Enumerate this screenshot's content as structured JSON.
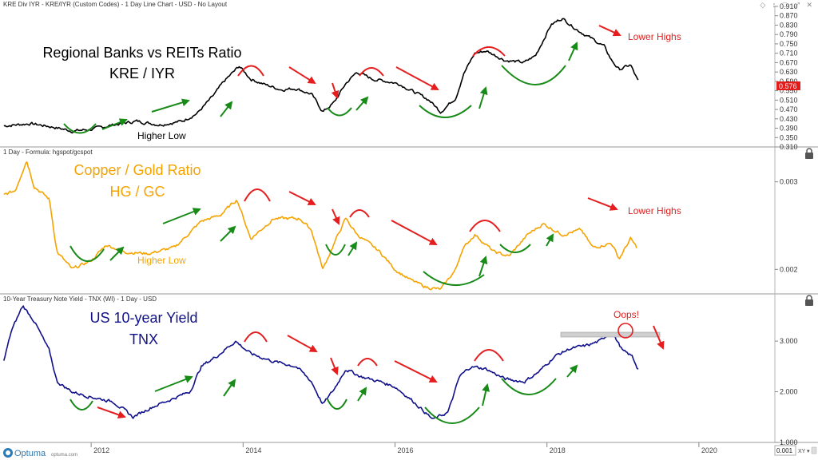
{
  "window": {
    "title": "KRE Div IYR - KRE/IYR (Custom Codes) - 1 Day Line Chart - USD - No Layout",
    "controls": [
      "◇",
      "↕",
      "□",
      "⤢",
      "✕"
    ]
  },
  "brand": {
    "logo_text": "Optuma",
    "site": "optuma.com",
    "zoom_readout": "0.001",
    "xy_label": "XY"
  },
  "x_axis": {
    "labels": [
      "2012",
      "2014",
      "2016",
      "2018",
      "2020"
    ],
    "positions": [
      2012,
      2014,
      2016,
      2018,
      2020
    ]
  },
  "chart_data": [
    {
      "type": "line",
      "panel": "top",
      "header": "",
      "title": [
        "Regional Banks vs REITs Ratio",
        "KRE / IYR"
      ],
      "series": [
        {
          "name": "KRE/IYR",
          "color": "#000000"
        }
      ],
      "ylim": [
        0.31,
        0.91
      ],
      "y_ticks": [
        0.91,
        0.87,
        0.83,
        0.79,
        0.75,
        0.71,
        0.67,
        0.63,
        0.59,
        0.55,
        0.51,
        0.47,
        0.43,
        0.39,
        0.35,
        0.31
      ],
      "y_tick_labels": [
        "0.910",
        "0.870",
        "0.830",
        "0.790",
        "0.750",
        "0.710",
        "0.670",
        "0.630",
        "0.590",
        "0.550",
        "0.510",
        "0.470",
        "0.430",
        "0.390",
        "0.350",
        "0.310"
      ],
      "last_value": 0.576,
      "last_value_label": "0.576",
      "annotations": [
        "Higher Low",
        "Lower Highs"
      ],
      "anchors": [
        [
          2010.85,
          0.4
        ],
        [
          2011.2,
          0.41
        ],
        [
          2011.5,
          0.395
        ],
        [
          2011.75,
          0.378
        ],
        [
          2012.0,
          0.385
        ],
        [
          2012.3,
          0.405
        ],
        [
          2012.6,
          0.42
        ],
        [
          2012.9,
          0.405
        ],
        [
          2013.2,
          0.42
        ],
        [
          2013.4,
          0.455
        ],
        [
          2013.6,
          0.525
        ],
        [
          2013.75,
          0.59
        ],
        [
          2013.95,
          0.655
        ],
        [
          2014.1,
          0.6
        ],
        [
          2014.3,
          0.575
        ],
        [
          2014.5,
          0.555
        ],
        [
          2014.7,
          0.56
        ],
        [
          2014.9,
          0.535
        ],
        [
          2015.05,
          0.46
        ],
        [
          2015.2,
          0.5
        ],
        [
          2015.35,
          0.58
        ],
        [
          2015.5,
          0.63
        ],
        [
          2015.7,
          0.6
        ],
        [
          2015.9,
          0.59
        ],
        [
          2016.05,
          0.58
        ],
        [
          2016.25,
          0.545
        ],
        [
          2016.45,
          0.51
        ],
        [
          2016.6,
          0.46
        ],
        [
          2016.8,
          0.52
        ],
        [
          2016.9,
          0.62
        ],
        [
          2017.05,
          0.71
        ],
        [
          2017.2,
          0.72
        ],
        [
          2017.45,
          0.68
        ],
        [
          2017.7,
          0.67
        ],
        [
          2017.85,
          0.7
        ],
        [
          2018.05,
          0.83
        ],
        [
          2018.2,
          0.86
        ],
        [
          2018.4,
          0.81
        ],
        [
          2018.6,
          0.77
        ],
        [
          2018.75,
          0.74
        ],
        [
          2018.85,
          0.68
        ],
        [
          2018.95,
          0.64
        ],
        [
          2019.1,
          0.66
        ],
        [
          2019.2,
          0.59
        ]
      ]
    },
    {
      "type": "line",
      "panel": "middle",
      "header": "1 Day - Formula: hgspot/gcspot",
      "title": [
        "Copper / Gold Ratio",
        "HG / GC"
      ],
      "series": [
        {
          "name": "HG/GC",
          "color": "#f5a300"
        }
      ],
      "ylim": [
        0.00172,
        0.00338
      ],
      "y_ticks": [
        0.003,
        0.002
      ],
      "y_tick_labels": [
        "0.003",
        "0.002"
      ],
      "annotations": [
        "Higher Low",
        "Lower Highs"
      ],
      "anchors": [
        [
          2010.85,
          0.00285
        ],
        [
          2011.0,
          0.0029
        ],
        [
          2011.15,
          0.00325
        ],
        [
          2011.25,
          0.00295
        ],
        [
          2011.45,
          0.0028
        ],
        [
          2011.55,
          0.0022
        ],
        [
          2011.75,
          0.002
        ],
        [
          2012.0,
          0.0021
        ],
        [
          2012.2,
          0.00228
        ],
        [
          2012.45,
          0.0022
        ],
        [
          2012.75,
          0.00218
        ],
        [
          2013.1,
          0.00225
        ],
        [
          2013.45,
          0.00255
        ],
        [
          2013.7,
          0.00262
        ],
        [
          2013.92,
          0.0028
        ],
        [
          2014.1,
          0.00235
        ],
        [
          2014.4,
          0.00258
        ],
        [
          2014.75,
          0.00258
        ],
        [
          2014.9,
          0.00245
        ],
        [
          2015.05,
          0.002
        ],
        [
          2015.2,
          0.0023
        ],
        [
          2015.35,
          0.00258
        ],
        [
          2015.5,
          0.0024
        ],
        [
          2015.8,
          0.0022
        ],
        [
          2016.0,
          0.002
        ],
        [
          2016.2,
          0.00188
        ],
        [
          2016.4,
          0.0018
        ],
        [
          2016.6,
          0.00177
        ],
        [
          2016.8,
          0.002
        ],
        [
          2016.88,
          0.00222
        ],
        [
          2017.05,
          0.0024
        ],
        [
          2017.3,
          0.0022
        ],
        [
          2017.5,
          0.00215
        ],
        [
          2017.75,
          0.0024
        ],
        [
          2017.95,
          0.00252
        ],
        [
          2018.2,
          0.0024
        ],
        [
          2018.45,
          0.00245
        ],
        [
          2018.6,
          0.00225
        ],
        [
          2018.85,
          0.0023
        ],
        [
          2018.95,
          0.00212
        ],
        [
          2019.1,
          0.00235
        ],
        [
          2019.18,
          0.00225
        ]
      ]
    },
    {
      "type": "line",
      "panel": "bottom",
      "header": "10-Year Treasury Note Yield - TNX (WI) - 1 Day - USD",
      "title": [
        "US 10-year Yield",
        "TNX"
      ],
      "series": [
        {
          "name": "TNX",
          "color": "#10108a"
        }
      ],
      "ylim": [
        1.0,
        3.9
      ],
      "y_ticks": [
        3.0,
        2.0,
        1.0
      ],
      "y_tick_labels": [
        "3.000",
        "2.000",
        "1.000"
      ],
      "annotations": [
        "Oops!"
      ],
      "anchors": [
        [
          2010.85,
          2.6
        ],
        [
          2010.95,
          3.2
        ],
        [
          2011.1,
          3.7
        ],
        [
          2011.25,
          3.4
        ],
        [
          2011.45,
          2.8
        ],
        [
          2011.55,
          2.2
        ],
        [
          2011.75,
          2.0
        ],
        [
          2012.0,
          1.9
        ],
        [
          2012.3,
          1.8
        ],
        [
          2012.55,
          1.5
        ],
        [
          2012.8,
          1.7
        ],
        [
          2013.05,
          1.85
        ],
        [
          2013.3,
          2.0
        ],
        [
          2013.45,
          2.5
        ],
        [
          2013.65,
          2.7
        ],
        [
          2013.9,
          3.0
        ],
        [
          2014.1,
          2.75
        ],
        [
          2014.4,
          2.6
        ],
        [
          2014.7,
          2.5
        ],
        [
          2014.9,
          2.2
        ],
        [
          2015.05,
          1.75
        ],
        [
          2015.2,
          2.05
        ],
        [
          2015.35,
          2.45
        ],
        [
          2015.55,
          2.3
        ],
        [
          2015.8,
          2.2
        ],
        [
          2016.0,
          2.1
        ],
        [
          2016.25,
          1.8
        ],
        [
          2016.5,
          1.45
        ],
        [
          2016.7,
          1.6
        ],
        [
          2016.85,
          2.3
        ],
        [
          2017.0,
          2.5
        ],
        [
          2017.2,
          2.45
        ],
        [
          2017.45,
          2.25
        ],
        [
          2017.7,
          2.2
        ],
        [
          2017.9,
          2.4
        ],
        [
          2018.1,
          2.7
        ],
        [
          2018.3,
          2.85
        ],
        [
          2018.5,
          2.9
        ],
        [
          2018.7,
          3.0
        ],
        [
          2018.85,
          3.2
        ],
        [
          2019.0,
          2.8
        ],
        [
          2019.12,
          2.7
        ],
        [
          2019.2,
          2.45
        ]
      ]
    }
  ]
}
